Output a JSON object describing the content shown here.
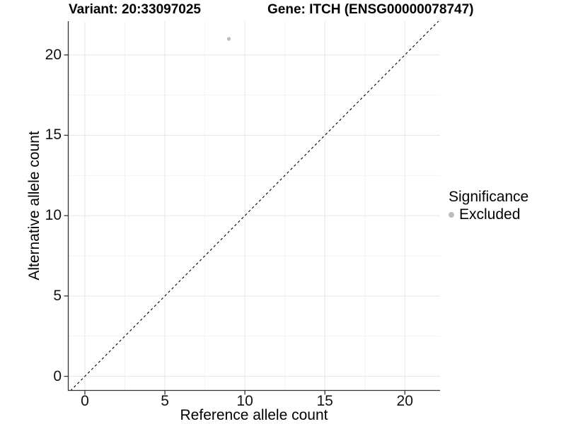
{
  "chart_data": {
    "type": "scatter",
    "title_left": "Variant: 20:33097025",
    "title_right": "Gene: ITCH (ENSG00000078747)",
    "xlabel": "Reference allele count",
    "ylabel": "Alternative allele count",
    "xlim": [
      -1.06,
      22.2
    ],
    "ylim": [
      -0.9,
      22.1
    ],
    "xticks": [
      0,
      5,
      10,
      15,
      20
    ],
    "yticks": [
      0,
      5,
      10,
      15,
      20
    ],
    "minor_ticks_x": [
      2.5,
      7.5,
      12.5,
      17.5
    ],
    "minor_ticks_y": [
      2.5,
      7.5,
      12.5,
      17.5
    ],
    "grid": "major+minor",
    "legend_position": "right",
    "reference_line": {
      "equation": "y = x",
      "style": "dashed",
      "color": "#000000"
    },
    "series": [
      {
        "name": "Excluded",
        "marker": "circle",
        "color": "#bcbcbc",
        "points": [
          {
            "x": 9,
            "y": 21
          }
        ]
      }
    ],
    "legend": {
      "title": "Significance",
      "entries": [
        {
          "label": "Excluded",
          "color": "#bcbcbc"
        }
      ]
    },
    "colors": {
      "background": "#ffffff",
      "axis_line": "#333333",
      "tick_mark": "#333333",
      "tick_text": "#111111",
      "grid_major": "#e7e7e7",
      "grid_minor": "#f3f3f3",
      "point": "#bcbcbc",
      "reference_line": "#000000"
    }
  }
}
